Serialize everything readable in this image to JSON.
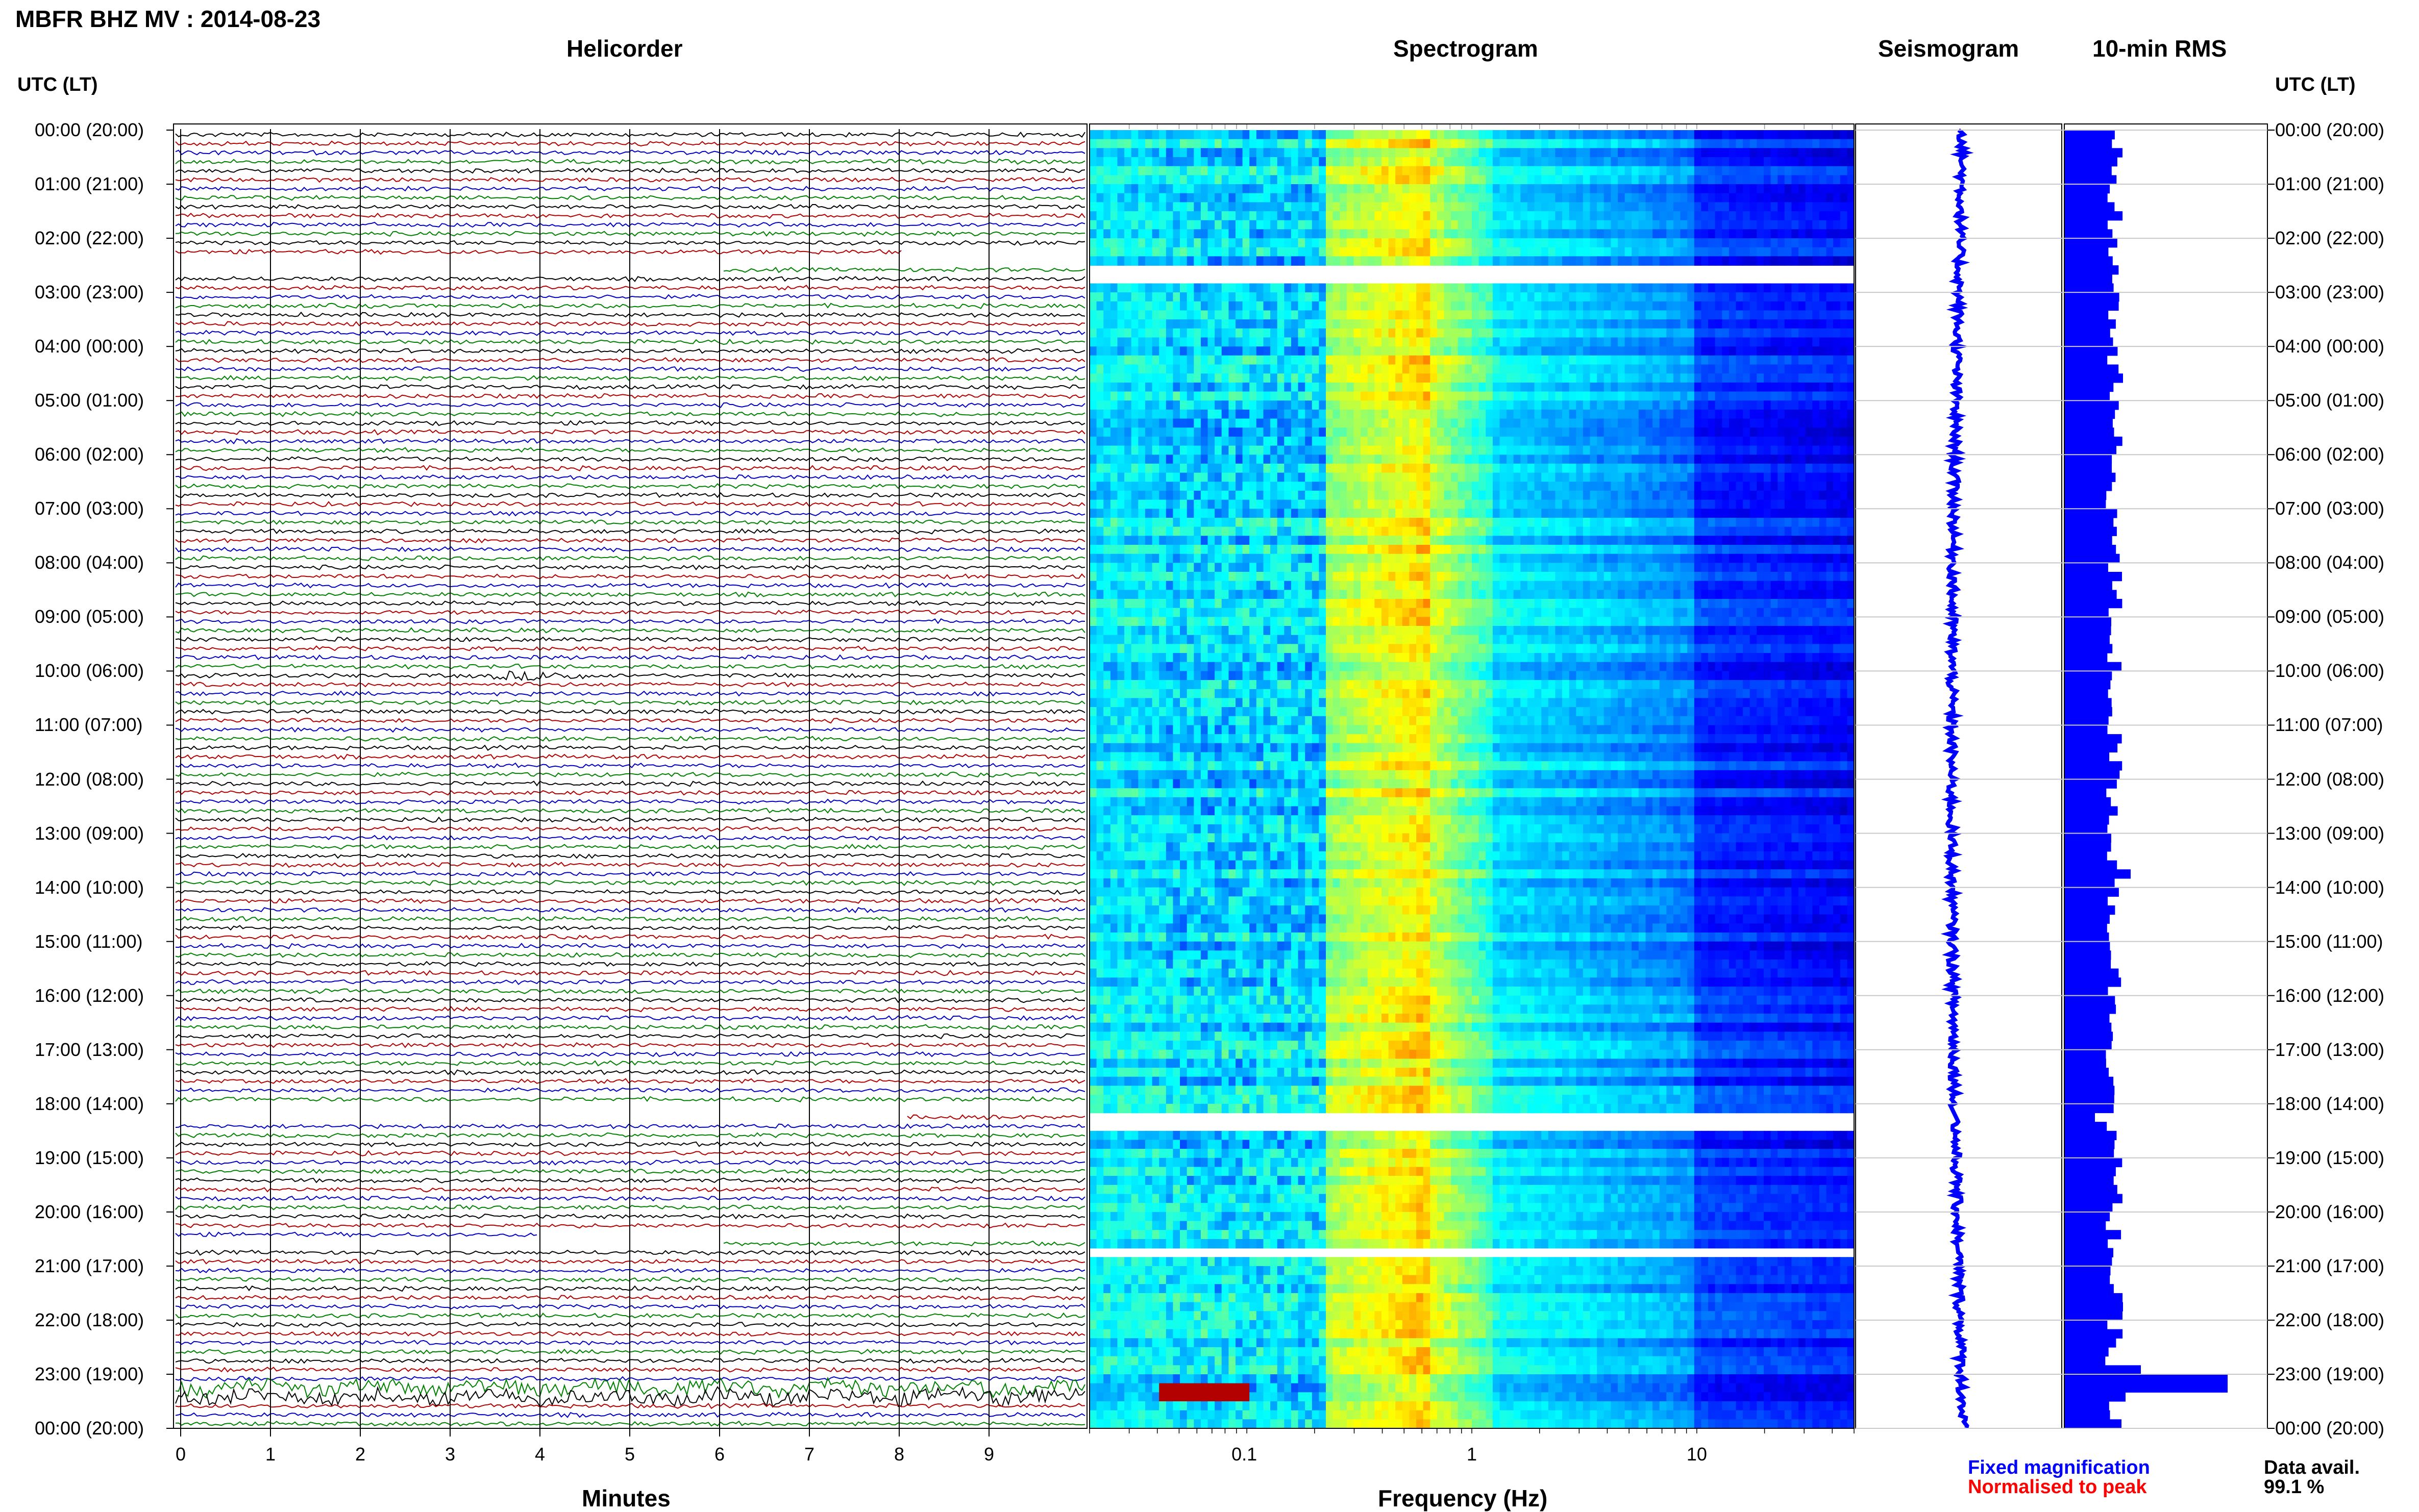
{
  "header": {
    "title": "MBFR BHZ MV : 2014-08-23"
  },
  "panels": {
    "helicorder": "Helicorder",
    "spectrogram": "Spectrogram",
    "seismogram": "Seismogram",
    "rms": "10-min RMS"
  },
  "time_axis_label": "UTC (LT)",
  "x_labels": {
    "helicorder": "Minutes",
    "spectrogram": "Frequency (Hz)"
  },
  "legend": {
    "fixed": "Fixed magnification",
    "normalised": "Normalised to peak",
    "data_avail_label": "Data avail.",
    "data_avail_value": "99.1 %"
  },
  "colors": {
    "trace_cycle": [
      "#000000",
      "#b00000",
      "#0000c0",
      "#008000"
    ],
    "seismogram": "#0000ff",
    "rms": "#0000ff",
    "fixed": "#0000ff",
    "normalised": "#ff0000"
  },
  "chart_data": [
    {
      "type": "line",
      "panel": "helicorder",
      "xlabel": "Minutes",
      "x_ticks": [
        "0",
        "1",
        "2",
        "3",
        "4",
        "5",
        "6",
        "7",
        "8",
        "9"
      ],
      "xlim": [
        0,
        10
      ],
      "y_ticks": [
        "00:00 (20:00)",
        "01:00 (21:00)",
        "02:00 (22:00)",
        "03:00 (23:00)",
        "04:00 (00:00)",
        "05:00 (01:00)",
        "06:00 (02:00)",
        "07:00 (03:00)",
        "08:00 (04:00)",
        "09:00 (05:00)",
        "10:00 (06:00)",
        "11:00 (07:00)",
        "12:00 (08:00)",
        "13:00 (09:00)",
        "14:00 (10:00)",
        "15:00 (11:00)",
        "16:00 (12:00)",
        "17:00 (13:00)",
        "18:00 (14:00)",
        "19:00 (15:00)",
        "20:00 (16:00)",
        "21:00 (17:00)",
        "22:00 (18:00)",
        "23:00 (19:00)",
        "00:00 (20:00)"
      ],
      "rows_per_hour": 6,
      "gaps_utc_hours": [
        [
          2.3,
          2.6
        ],
        [
          18.0,
          18.3
        ],
        [
          20.4,
          20.6
        ]
      ]
    },
    {
      "type": "heatmap",
      "panel": "spectrogram",
      "xlabel": "Frequency (Hz)",
      "x_scale": "log",
      "xlim": [
        0.02,
        50
      ],
      "x_ticks": [
        "0.1",
        "1",
        "10"
      ],
      "colormap": "jet",
      "gaps_utc_hours": [
        [
          2.35,
          2.75
        ],
        [
          18.05,
          18.35
        ],
        [
          20.6,
          20.75
        ]
      ]
    },
    {
      "type": "line",
      "panel": "seismogram",
      "color": "#0000ff"
    },
    {
      "type": "bar",
      "panel": "rms",
      "orientation": "horizontal",
      "color": "#0000ff",
      "interval_minutes": 10
    }
  ]
}
